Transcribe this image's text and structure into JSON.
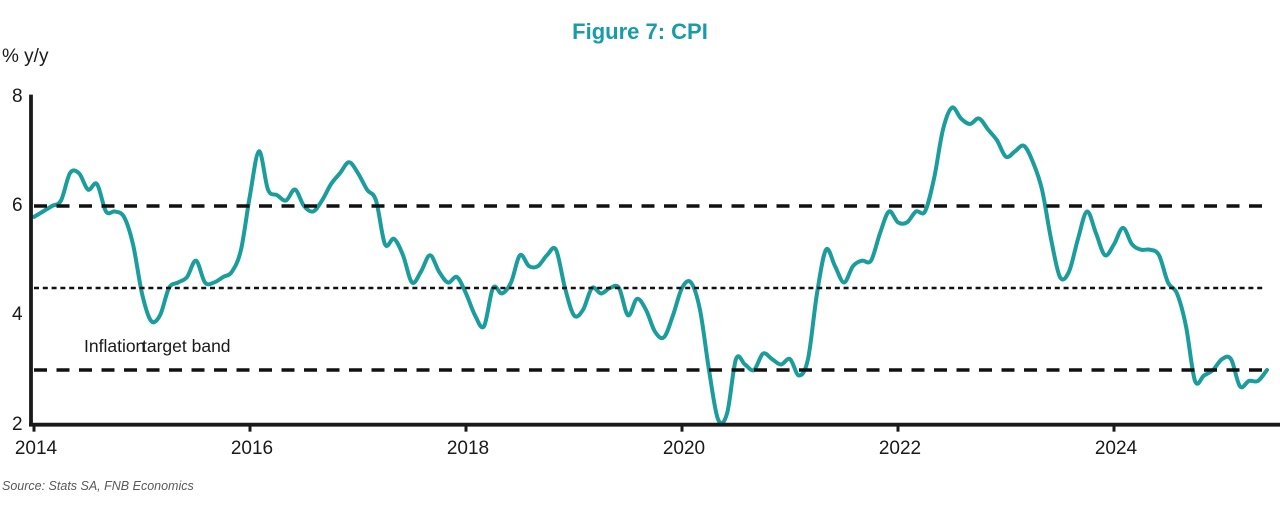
{
  "title": "Figure 7: CPI",
  "y_unit_label": "% y/y",
  "annotation": {
    "text_left": "Inflation",
    "text_right": "target band"
  },
  "source": "Source: Stats SA, FNB Economics",
  "colors": {
    "title": "#189CA8",
    "line": "#1A9D9C",
    "axis": "#1A1A1A",
    "reference_line": "#111111",
    "source_text": "#58595B"
  },
  "chart_data": {
    "type": "line",
    "title": "Figure 7: CPI",
    "ylabel": "% y/y",
    "xlabel": "",
    "ylim": [
      2,
      8
    ],
    "xlim_years": [
      2014,
      2025.5
    ],
    "grid": false,
    "legend": "none",
    "y_ticks": [
      8,
      6,
      4,
      2
    ],
    "x_ticks": [
      {
        "label": "2014",
        "year": 2014
      },
      {
        "label": "2016",
        "year": 2016
      },
      {
        "label": "2018",
        "year": 2018
      },
      {
        "label": "2020",
        "year": 2020
      },
      {
        "label": "2022",
        "year": 2022
      },
      {
        "label": "2024",
        "year": 2024
      }
    ],
    "reference_lines": [
      {
        "value": 6,
        "style": "dashed",
        "name": "inflation-target-upper"
      },
      {
        "value": 4.5,
        "style": "dotted",
        "name": "inflation-target-midpoint"
      },
      {
        "value": 3,
        "style": "dashed",
        "name": "inflation-target-lower"
      }
    ],
    "series": [
      {
        "name": "CPI % y/y",
        "start_year": 2014,
        "points_per_year": 12,
        "values": [
          5.8,
          5.9,
          6.0,
          6.1,
          6.6,
          6.6,
          6.3,
          6.4,
          5.9,
          5.9,
          5.8,
          5.3,
          4.4,
          3.9,
          4.0,
          4.5,
          4.6,
          4.7,
          5.0,
          4.6,
          4.6,
          4.7,
          4.8,
          5.2,
          6.2,
          7.0,
          6.3,
          6.2,
          6.1,
          6.3,
          6.0,
          5.9,
          6.1,
          6.4,
          6.6,
          6.8,
          6.6,
          6.3,
          6.1,
          5.3,
          5.4,
          5.1,
          4.6,
          4.8,
          5.1,
          4.8,
          4.6,
          4.7,
          4.4,
          4.0,
          3.8,
          4.5,
          4.4,
          4.6,
          5.1,
          4.9,
          4.9,
          5.1,
          5.2,
          4.5,
          4.0,
          4.1,
          4.5,
          4.4,
          4.5,
          4.5,
          4.0,
          4.3,
          4.1,
          3.7,
          3.6,
          4.0,
          4.5,
          4.6,
          4.1,
          3.0,
          2.1,
          2.2,
          3.2,
          3.1,
          3.0,
          3.3,
          3.2,
          3.1,
          3.2,
          2.9,
          3.2,
          4.4,
          5.2,
          4.9,
          4.6,
          4.9,
          5.0,
          5.0,
          5.5,
          5.9,
          5.7,
          5.7,
          5.9,
          5.9,
          6.5,
          7.4,
          7.8,
          7.6,
          7.5,
          7.6,
          7.4,
          7.2,
          6.9,
          7.0,
          7.1,
          6.8,
          6.3,
          5.4,
          4.7,
          4.8,
          5.4,
          5.9,
          5.5,
          5.1,
          5.3,
          5.6,
          5.3,
          5.2,
          5.2,
          5.1,
          4.6,
          4.4,
          3.8,
          2.8,
          2.9,
          3.0,
          3.2,
          3.2,
          2.7,
          2.8,
          2.8,
          3.0
        ]
      }
    ]
  }
}
